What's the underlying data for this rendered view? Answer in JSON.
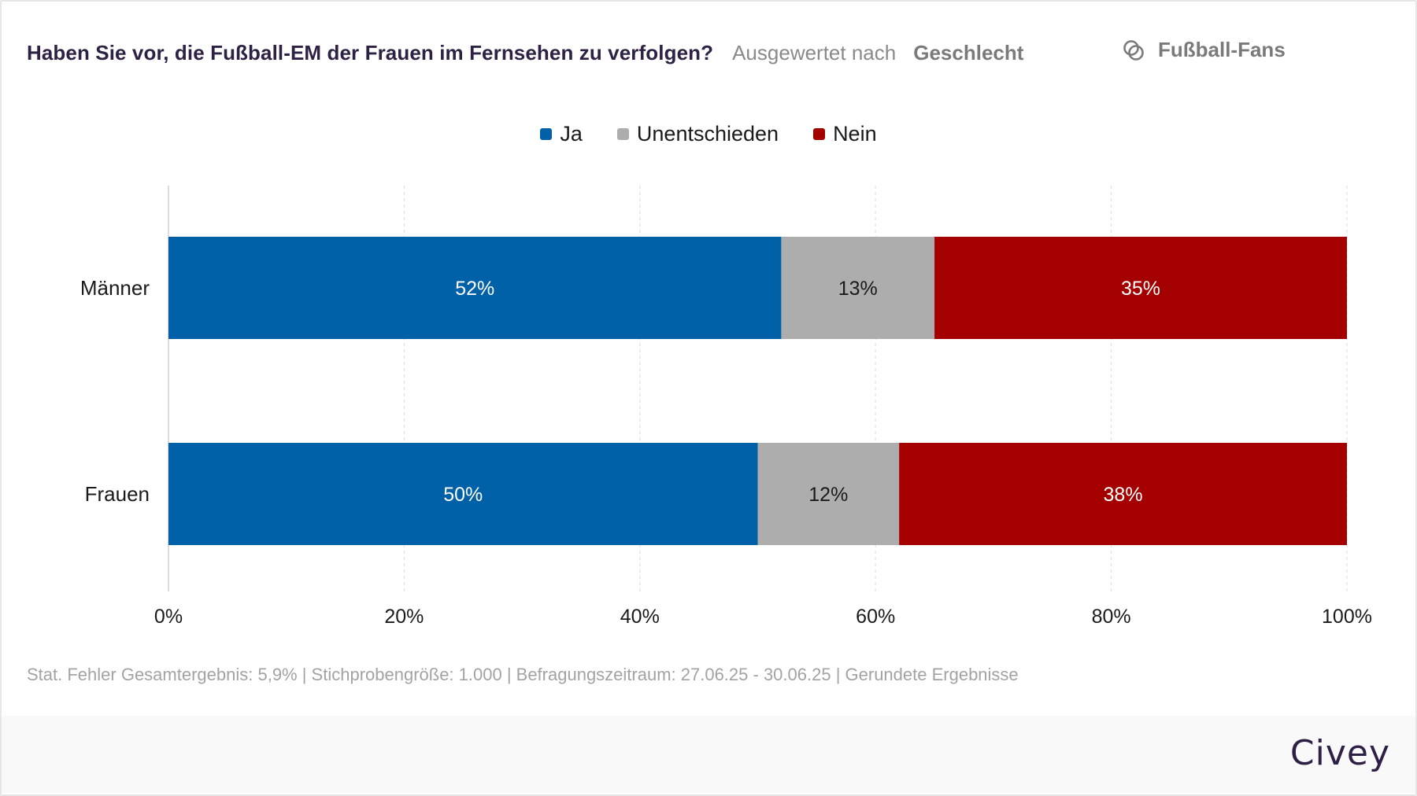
{
  "header": {
    "title": "Haben Sie vor, die Fußball-EM der Frauen im Fernsehen zu verfolgen?",
    "breakdown_label": "Ausgewertet nach",
    "breakdown_value": "Geschlecht",
    "filter_icon": "intersecting-circles-icon",
    "filter_label": "Fußball-Fans"
  },
  "legend": [
    {
      "label": "Ja",
      "color": "#0060a8"
    },
    {
      "label": "Unentschieden",
      "color": "#adadad"
    },
    {
      "label": "Nein",
      "color": "#a50000"
    }
  ],
  "footnote": "Stat. Fehler Gesamtergebnis: 5,9% | Stichprobengröße: 1.000 | Befragungszeitraum: 27.06.25 - 30.06.25 | Gerundete Ergebnisse",
  "brand": "Civey",
  "chart_data": {
    "type": "bar",
    "orientation": "horizontal",
    "stacked": true,
    "title": "Haben Sie vor, die Fußball-EM der Frauen im Fernsehen zu verfolgen?",
    "categories": [
      "Männer",
      "Frauen"
    ],
    "series": [
      {
        "name": "Ja",
        "color": "#0060a8",
        "label_color": "#ffffff",
        "values": [
          52,
          50
        ]
      },
      {
        "name": "Unentschieden",
        "color": "#adadad",
        "label_color": "#1a1a1a",
        "values": [
          13,
          12
        ]
      },
      {
        "name": "Nein",
        "color": "#a50000",
        "label_color": "#ffffff",
        "values": [
          35,
          38
        ]
      }
    ],
    "xlim": [
      0,
      100
    ],
    "xticks": [
      0,
      20,
      40,
      60,
      80,
      100
    ],
    "xtick_labels": [
      "0%",
      "20%",
      "40%",
      "60%",
      "80%",
      "100%"
    ],
    "value_suffix": "%",
    "xlabel": "",
    "ylabel": "",
    "grid": "vertical dashed",
    "legend_position": "top-center"
  }
}
